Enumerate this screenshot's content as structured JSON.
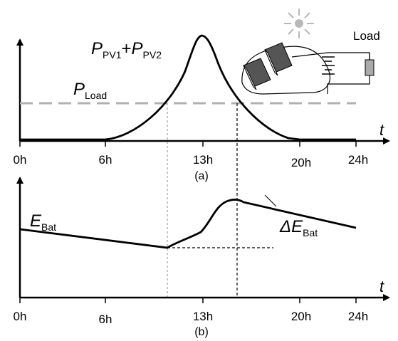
{
  "panel_a": {
    "time_labels": [
      "0h",
      "6h",
      "13h",
      "20h",
      "24h"
    ],
    "axis_variable": "t",
    "caption": "(a)",
    "pv_label": {
      "p1": "P",
      "s1": "PV1",
      "plus": "+",
      "p2": "P",
      "s2": "PV2"
    },
    "load_label": {
      "p": "P",
      "s": "Load"
    },
    "inset_load_label": "Load"
  },
  "panel_b": {
    "time_labels": [
      "0h",
      "6h",
      "13h",
      "20h",
      "24h"
    ],
    "axis_variable": "t",
    "caption": "(b)",
    "e_bat_label": {
      "e": "E",
      "s": "Bat"
    },
    "delta_label": {
      "d": "ΔE",
      "s": "Bat"
    }
  },
  "colors": {
    "curve": "#000000",
    "load_dash": "#b0b0b0",
    "guide_light": "#a0a0a0",
    "panel_dark": "#555555",
    "sun": "#b8b8b8"
  }
}
